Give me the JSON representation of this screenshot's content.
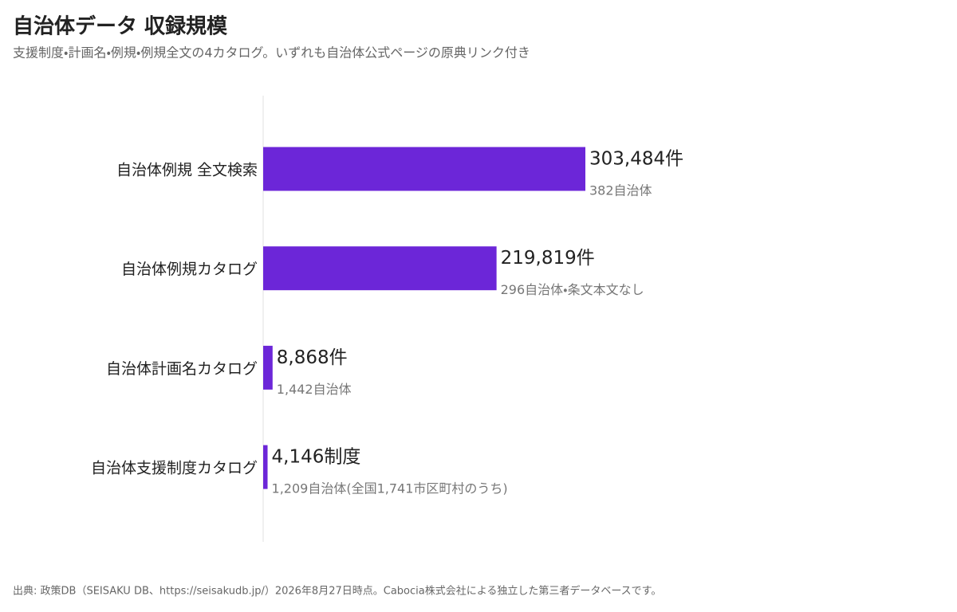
{
  "chart_data": {
    "type": "bar",
    "orientation": "horizontal",
    "title": "自治体データ 収録規模",
    "subtitle": "支援制度・計画名・例規・例規全文の4カタログ。いずれも自治体公式ページの原典リンク付き",
    "categories": [
      "自治体例規 全文検索",
      "自治体例規カタログ",
      "自治体計画名カタログ",
      "自治体支援制度カタログ"
    ],
    "values": [
      303484,
      219819,
      8868,
      4146
    ],
    "value_labels": [
      "303,484件",
      "219,819件",
      "8,868件",
      "4,146制度"
    ],
    "notes": [
      "382自治体",
      "296自治体・条文本文なし",
      "1,442自治体",
      "1,209自治体(全国1,741市区町村のうち)"
    ],
    "color": "#6c26d8",
    "source": "出典: 政策DB（SEISAKU DB、https://seisakudb.jp/）2026年8月27日時点。Cabocia株式会社による独立した第三者データベースです。"
  }
}
